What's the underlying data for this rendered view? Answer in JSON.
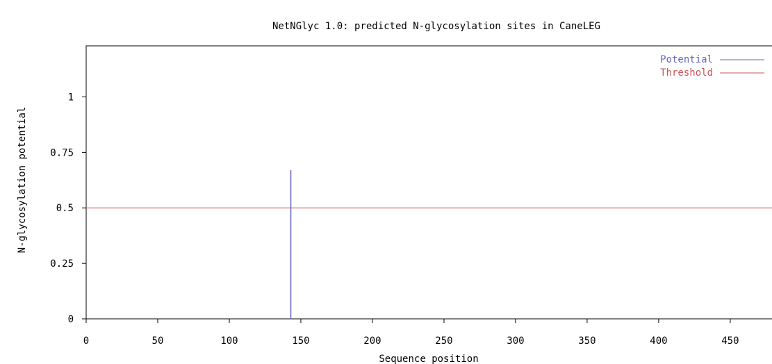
{
  "chart_data": {
    "type": "line",
    "title": "NetNGlyc 1.0: predicted N-glycosylation sites in CaneLEG",
    "xlabel": "Sequence position",
    "ylabel": "N-glycosylation potential",
    "xlim": [
      0,
      485
    ],
    "ylim": [
      0,
      1.23
    ],
    "x_ticks": [
      0,
      50,
      100,
      150,
      200,
      250,
      300,
      350,
      400,
      450
    ],
    "x_tick_labels": [
      "0",
      "50",
      "100",
      "150",
      "200",
      "250",
      "300",
      "350",
      "400",
      "450"
    ],
    "y_ticks": [
      0,
      0.25,
      0.5,
      0.75,
      1
    ],
    "y_tick_labels": [
      "0",
      "0.25",
      "0.5",
      "0.75",
      "1"
    ],
    "grid": false,
    "legend_position": "top-right",
    "series": [
      {
        "name": "Potential",
        "color": "#6666bb",
        "style": "impulse",
        "points": [
          {
            "x": 143,
            "y": 0.67
          }
        ]
      },
      {
        "name": "Threshold",
        "color": "#cc5555",
        "style": "hline",
        "y": 0.5
      }
    ]
  }
}
